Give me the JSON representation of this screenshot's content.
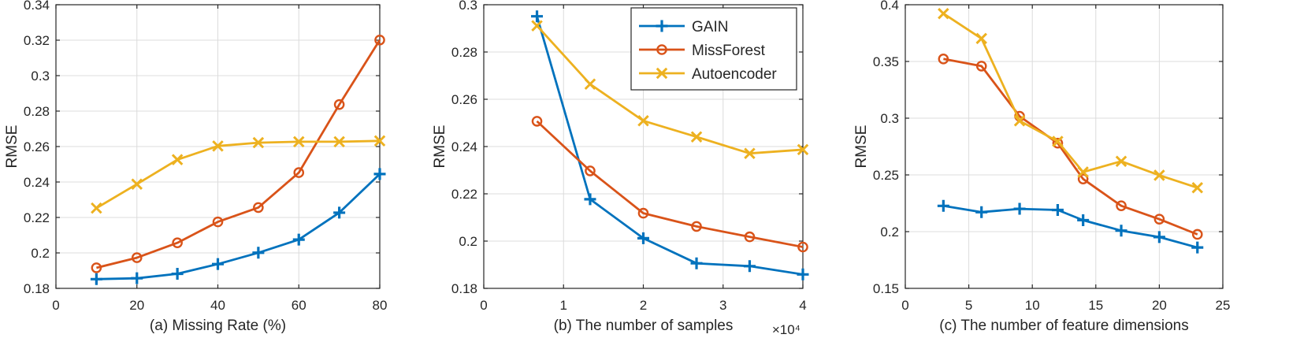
{
  "colors": {
    "gain": "#0072BD",
    "missforest": "#D95319",
    "autoencoder": "#EDB120",
    "axis": "#262626",
    "grid": "#dcdcdc"
  },
  "legend": {
    "position": "top-right of panel (b)",
    "entries": [
      "GAIN",
      "MissForest",
      "Autoencoder"
    ]
  },
  "chart_data": [
    {
      "type": "line",
      "title": "",
      "xlabel": "(a) Missing Rate (%)",
      "ylabel": "RMSE",
      "xlim": [
        0,
        80
      ],
      "ylim": [
        0.18,
        0.34
      ],
      "xticks": [
        0,
        20,
        40,
        60,
        80
      ],
      "xtick_labels": [
        "0",
        "20",
        "40",
        "60",
        "80"
      ],
      "yticks": [
        0.18,
        0.2,
        0.22,
        0.24,
        0.26,
        0.28,
        0.3,
        0.32,
        0.34
      ],
      "ytick_labels": [
        "0.18",
        "0.2",
        "0.22",
        "0.24",
        "0.26",
        "0.28",
        "0.3",
        "0.32",
        "0.34"
      ],
      "multiplier": "",
      "grid": true,
      "x": [
        10,
        20,
        30,
        40,
        50,
        60,
        70,
        80
      ],
      "series": [
        {
          "name": "GAIN",
          "marker": "plus",
          "values": [
            0.1852,
            0.1857,
            0.1882,
            0.1937,
            0.2001,
            0.2075,
            0.2227,
            0.2445
          ]
        },
        {
          "name": "MissForest",
          "marker": "circle",
          "values": [
            0.1916,
            0.1973,
            0.2057,
            0.2175,
            0.2256,
            0.2453,
            0.2837,
            0.3201
          ]
        },
        {
          "name": "Autoencoder",
          "marker": "cross",
          "values": [
            0.2253,
            0.2388,
            0.2526,
            0.2603,
            0.2622,
            0.2627,
            0.2627,
            0.2632
          ]
        }
      ]
    },
    {
      "type": "line",
      "title": "",
      "xlabel": "(b) The number of samples",
      "ylabel": "RMSE",
      "xlim": [
        0,
        4
      ],
      "ylim": [
        0.18,
        0.3
      ],
      "xticks": [
        0,
        1,
        2,
        3,
        4
      ],
      "xtick_labels": [
        "0",
        "1",
        "2",
        "3",
        "4"
      ],
      "yticks": [
        0.18,
        0.2,
        0.22,
        0.24,
        0.26,
        0.28,
        0.3
      ],
      "ytick_labels": [
        "0.18",
        "0.2",
        "0.22",
        "0.24",
        "0.26",
        "0.28",
        "0.3"
      ],
      "multiplier": "×10⁴",
      "grid": true,
      "x": [
        0.667,
        1.333,
        2.0,
        2.667,
        3.333,
        4.0
      ],
      "series": [
        {
          "name": "GAIN",
          "marker": "plus",
          "values": [
            0.2951,
            0.2177,
            0.2012,
            0.1906,
            0.1894,
            0.1859
          ]
        },
        {
          "name": "MissForest",
          "marker": "circle",
          "values": [
            0.2507,
            0.2297,
            0.2118,
            0.2062,
            0.2018,
            0.1975
          ]
        },
        {
          "name": "Autoencoder",
          "marker": "cross",
          "values": [
            0.2911,
            0.2664,
            0.2509,
            0.2441,
            0.2371,
            0.2387
          ]
        }
      ]
    },
    {
      "type": "line",
      "title": "",
      "xlabel": "(c) The number of feature dimensions",
      "ylabel": "RMSE",
      "xlim": [
        0,
        25
      ],
      "ylim": [
        0.15,
        0.4
      ],
      "xticks": [
        0,
        5,
        10,
        15,
        20,
        25
      ],
      "xtick_labels": [
        "0",
        "5",
        "10",
        "15",
        "20",
        "25"
      ],
      "yticks": [
        0.15,
        0.2,
        0.25,
        0.3,
        0.35,
        0.4
      ],
      "ytick_labels": [
        "0.15",
        "0.2",
        "0.25",
        "0.3",
        "0.35",
        "0.4"
      ],
      "multiplier": "",
      "grid": true,
      "x": [
        3,
        6,
        9,
        12,
        14,
        17,
        20,
        23
      ],
      "series": [
        {
          "name": "GAIN",
          "marker": "plus",
          "values": [
            0.2227,
            0.2172,
            0.2201,
            0.2191,
            0.2101,
            0.2009,
            0.1952,
            0.186
          ]
        },
        {
          "name": "MissForest",
          "marker": "circle",
          "values": [
            0.3522,
            0.3459,
            0.3017,
            0.278,
            0.2464,
            0.2228,
            0.211,
            0.1976
          ]
        },
        {
          "name": "Autoencoder",
          "marker": "cross",
          "values": [
            0.3922,
            0.3702,
            0.2977,
            0.2795,
            0.2525,
            0.262,
            0.2497,
            0.2387
          ]
        }
      ]
    }
  ]
}
